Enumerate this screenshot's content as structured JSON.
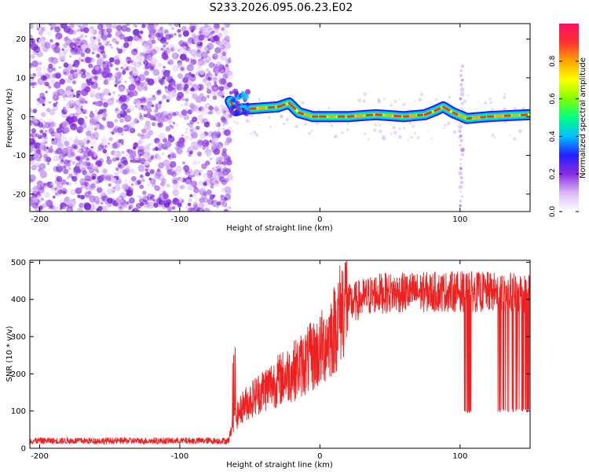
{
  "title": "S233.2026.095.06.23.E02",
  "colors": {
    "snr_line": "#ee2020",
    "axis": "#000000",
    "scatter": "#7a1fe0",
    "colorbar": [
      "#ffffff",
      "#d9b8f5",
      "#8a2be2",
      "#2020ff",
      "#00bfff",
      "#00ff80",
      "#80ff00",
      "#ffff00",
      "#ffa500",
      "#ff3030",
      "#ff1060"
    ]
  },
  "chart_data": [
    {
      "type": "heatmap",
      "name": "spectrogram",
      "xlabel": "Height of straight line (km)",
      "ylabel": "Frequency (Hz)",
      "xlim": [
        -207,
        150
      ],
      "ylim": [
        -24.5,
        24
      ],
      "xticks": [
        -200,
        -100,
        0,
        100
      ],
      "yticks": [
        -20,
        -10,
        0,
        10,
        20
      ],
      "colorbar": {
        "label": "Normalized spectral amplitude",
        "range": [
          0,
          1
        ],
        "ticks": [
          0.0,
          0.2,
          0.4,
          0.6,
          0.8
        ]
      },
      "noise_region_x": [
        -207,
        -64
      ],
      "tone_track": [
        {
          "x": -64,
          "y": 4
        },
        {
          "x": -60,
          "y": 1.5
        },
        {
          "x": -55,
          "y": 2
        },
        {
          "x": -50,
          "y": 2
        },
        {
          "x": -30,
          "y": 2.5
        },
        {
          "x": -22,
          "y": 3.5
        },
        {
          "x": -15,
          "y": 1
        },
        {
          "x": -5,
          "y": 0
        },
        {
          "x": 0,
          "y": 0
        },
        {
          "x": 20,
          "y": 0
        },
        {
          "x": 40,
          "y": 0.5
        },
        {
          "x": 60,
          "y": 0
        },
        {
          "x": 75,
          "y": 0.5
        },
        {
          "x": 82,
          "y": 1.5
        },
        {
          "x": 88,
          "y": 2.5
        },
        {
          "x": 95,
          "y": 1
        },
        {
          "x": 105,
          "y": -0.5
        },
        {
          "x": 120,
          "y": 0
        },
        {
          "x": 150,
          "y": 0.5
        }
      ],
      "vertical_streak_x": 101
    },
    {
      "type": "line",
      "name": "snr",
      "xlabel": "Height of straight line (km)",
      "ylabel": "SNR (10 * v/v)",
      "xlim": [
        -207,
        150
      ],
      "ylim": [
        0,
        505
      ],
      "xticks": [
        -200,
        -100,
        0,
        100
      ],
      "yticks": [
        0,
        100,
        200,
        300,
        400,
        500
      ],
      "trend": [
        {
          "x": -207,
          "y": 20
        },
        {
          "x": -65,
          "y": 20
        },
        {
          "x": -62,
          "y": 60
        },
        {
          "x": -55,
          "y": 100
        },
        {
          "x": -40,
          "y": 140
        },
        {
          "x": -20,
          "y": 180
        },
        {
          "x": 0,
          "y": 230
        },
        {
          "x": 10,
          "y": 280
        },
        {
          "x": 20,
          "y": 370
        },
        {
          "x": 40,
          "y": 400
        },
        {
          "x": 100,
          "y": 405
        },
        {
          "x": 150,
          "y": 400
        }
      ],
      "dropouts": [
        {
          "from": 103,
          "to": 108,
          "y": 95
        },
        {
          "from": 126,
          "to": 150,
          "y": 95
        }
      ]
    }
  ]
}
